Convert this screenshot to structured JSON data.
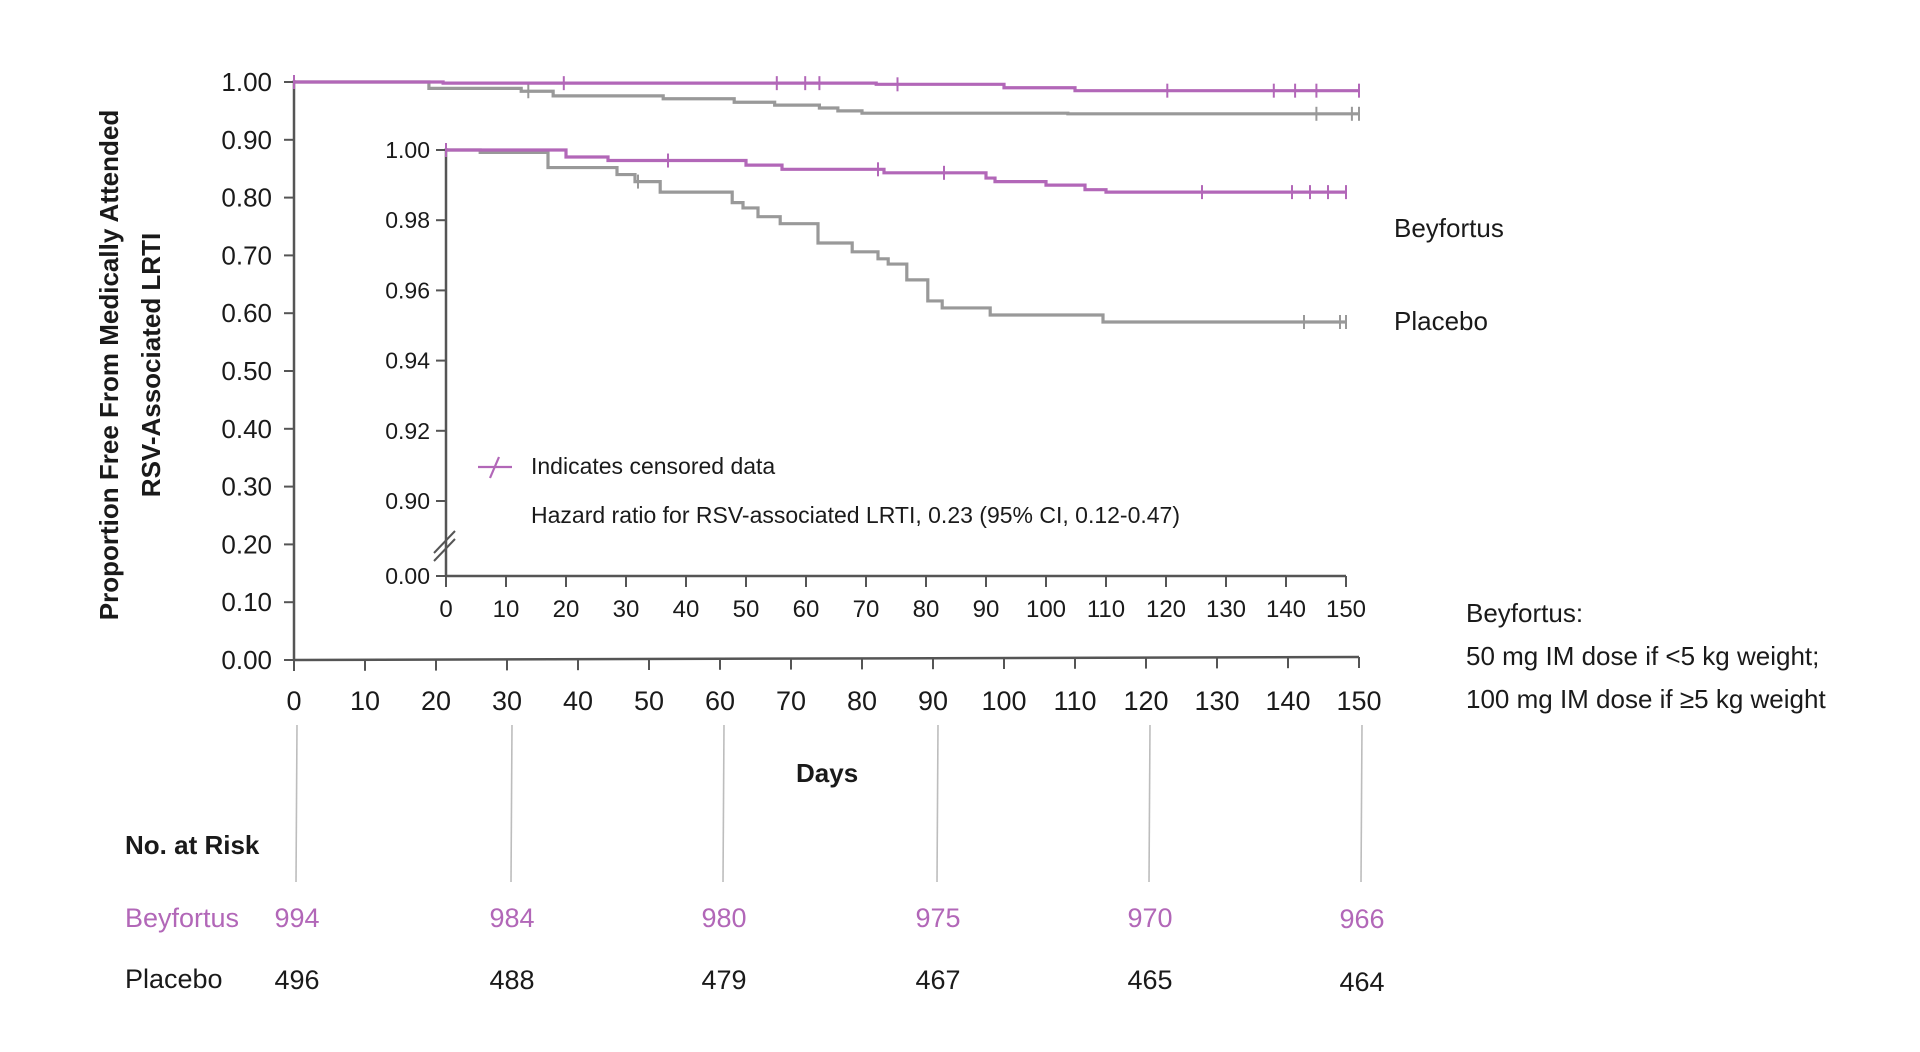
{
  "chart_data": {
    "type": "line",
    "subtype": "kaplan-meier",
    "title": "",
    "xlabel": "Days",
    "ylabel": "Proportion Free From Medically Attended RSV-Associated LRTI",
    "main_axes": {
      "xlim": [
        0,
        150
      ],
      "ylim": [
        0.0,
        1.0
      ],
      "x_ticks": [
        0,
        10,
        20,
        30,
        40,
        50,
        60,
        70,
        80,
        90,
        100,
        110,
        120,
        130,
        140,
        150
      ],
      "y_ticks": [
        "0.00",
        "0.10",
        "0.20",
        "0.30",
        "0.40",
        "0.50",
        "0.60",
        "0.70",
        "0.80",
        "0.90",
        "1.00"
      ]
    },
    "inset_axes": {
      "xlim": [
        0,
        150
      ],
      "ylim": [
        0.9,
        1.0
      ],
      "axis_break": true,
      "x_ticks": [
        0,
        10,
        20,
        30,
        40,
        50,
        60,
        70,
        80,
        90,
        100,
        110,
        120,
        130,
        140,
        150
      ],
      "y_ticks": [
        "0.00",
        "0.90",
        "0.92",
        "0.94",
        "0.96",
        "0.98",
        "1.00"
      ]
    },
    "series": [
      {
        "name": "Beyfortus",
        "color": "#b267b8",
        "main_steps": [
          [
            0,
            1.0
          ],
          [
            21,
            0.998
          ],
          [
            82,
            0.996
          ],
          [
            100,
            0.99
          ],
          [
            110,
            0.985
          ],
          [
            150,
            0.985
          ]
        ],
        "main_censored": [
          0,
          38,
          68,
          72,
          74,
          85,
          123,
          138,
          141,
          144,
          150
        ],
        "inset_steps": [
          [
            0,
            1.0
          ],
          [
            20,
            0.998
          ],
          [
            27,
            0.997
          ],
          [
            50,
            0.9957
          ],
          [
            56,
            0.9945
          ],
          [
            73,
            0.9935
          ],
          [
            90,
            0.992
          ],
          [
            91.5,
            0.991
          ],
          [
            100,
            0.99
          ],
          [
            106.5,
            0.9887
          ],
          [
            110,
            0.988
          ],
          [
            150,
            0.988
          ]
        ],
        "inset_censored": [
          0,
          37,
          72,
          83,
          126,
          141,
          144,
          147,
          150
        ]
      },
      {
        "name": "Placebo",
        "color": "#999999",
        "main_steps": [
          [
            0,
            1.0
          ],
          [
            19,
            0.989
          ],
          [
            32,
            0.984
          ],
          [
            36.5,
            0.976
          ],
          [
            52,
            0.971
          ],
          [
            62,
            0.965
          ],
          [
            67.7,
            0.96
          ],
          [
            74,
            0.955
          ],
          [
            76.6,
            0.95
          ],
          [
            80,
            0.946
          ],
          [
            109,
            0.945
          ],
          [
            150,
            0.945
          ]
        ],
        "main_censored": [
          33,
          144,
          149,
          150
        ],
        "inset_steps": [
          [
            0,
            1.0
          ],
          [
            5.7,
            0.9993
          ],
          [
            17,
            0.995
          ],
          [
            28.5,
            0.993
          ],
          [
            31.5,
            0.991
          ],
          [
            35.7,
            0.988
          ],
          [
            47.7,
            0.985
          ],
          [
            49.5,
            0.9835
          ],
          [
            52,
            0.981
          ],
          [
            55.7,
            0.979
          ],
          [
            62,
            0.9735
          ],
          [
            67.7,
            0.971
          ],
          [
            72,
            0.969
          ],
          [
            73.7,
            0.9675
          ],
          [
            76.8,
            0.963
          ],
          [
            80.3,
            0.957
          ],
          [
            82.7,
            0.955
          ],
          [
            90.7,
            0.953
          ],
          [
            109.5,
            0.951
          ],
          [
            150,
            0.951
          ]
        ],
        "inset_censored": [
          32,
          143,
          149,
          150
        ]
      }
    ],
    "legend": {
      "censored_marker": "Indicates censored data",
      "hazard_ratio": "Hazard ratio for RSV-associated LRTI, 0.23 (95% CI, 0.12-0.47)"
    },
    "risk_table": {
      "title": "No. at Risk",
      "days": [
        0,
        30,
        60,
        90,
        120,
        150
      ],
      "Beyfortus": [
        994,
        984,
        980,
        975,
        970,
        966
      ],
      "Placebo": [
        496,
        488,
        479,
        467,
        465,
        464
      ]
    }
  },
  "labels": {
    "ylabel_line1": "Proportion Free From Medically Attended",
    "ylabel_line2": "RSV-Associated LRTI",
    "xlabel": "Days",
    "series_beyfortus": "Beyfortus",
    "series_placebo": "Placebo",
    "legend_censored": "Indicates censored data",
    "legend_hazard": "Hazard ratio for RSV-associated LRTI, 0.23 (95% CI, 0.12-0.47)",
    "dose_title": "Beyfortus:",
    "dose_line1": "50 mg IM dose if <5 kg weight;",
    "dose_line2": "100 mg IM dose if ≥5 kg weight"
  },
  "risk": {
    "title": "No. at Risk",
    "rows": [
      {
        "label": "Beyfortus",
        "values": [
          "994",
          "984",
          "980",
          "975",
          "970",
          "966"
        ]
      },
      {
        "label": "Placebo",
        "values": [
          "496",
          "488",
          "479",
          "467",
          "465",
          "464"
        ]
      }
    ]
  },
  "colors": {
    "beyfortus": "#b267b8",
    "placebo": "#999999",
    "axis": "#555555",
    "text": "#1a1a1a"
  }
}
